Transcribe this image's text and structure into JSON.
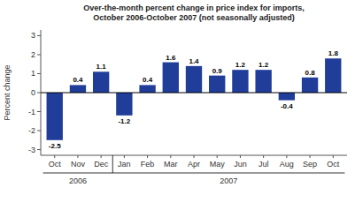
{
  "chart_data": {
    "type": "bar",
    "title": "Over-the-month percent change in price index for imports,",
    "subtitle": "October 2006-October 2007 (not seasonally adjusted)",
    "y_label": "Percent change",
    "categories": [
      "Oct",
      "Nov",
      "Dec",
      "Jan",
      "Feb",
      "Mar",
      "Apr",
      "May",
      "Jun",
      "Jul",
      "Aug",
      "Sep",
      "Oct"
    ],
    "values": [
      -2.5,
      0.4,
      1.1,
      -1.2,
      0.4,
      1.6,
      1.4,
      0.9,
      1.2,
      1.2,
      -0.4,
      0.8,
      1.8
    ],
    "category_groups": [
      "2006",
      "2006",
      "2006",
      "2007",
      "2007",
      "2007",
      "2007",
      "2007",
      "2007",
      "2007",
      "2007",
      "2007",
      "2007"
    ],
    "color": "#1f3d99",
    "ylim": [
      -3.3,
      3.3
    ],
    "yticks": [
      -3,
      -2,
      -1,
      0,
      1,
      2,
      3
    ],
    "data_labels": true
  }
}
